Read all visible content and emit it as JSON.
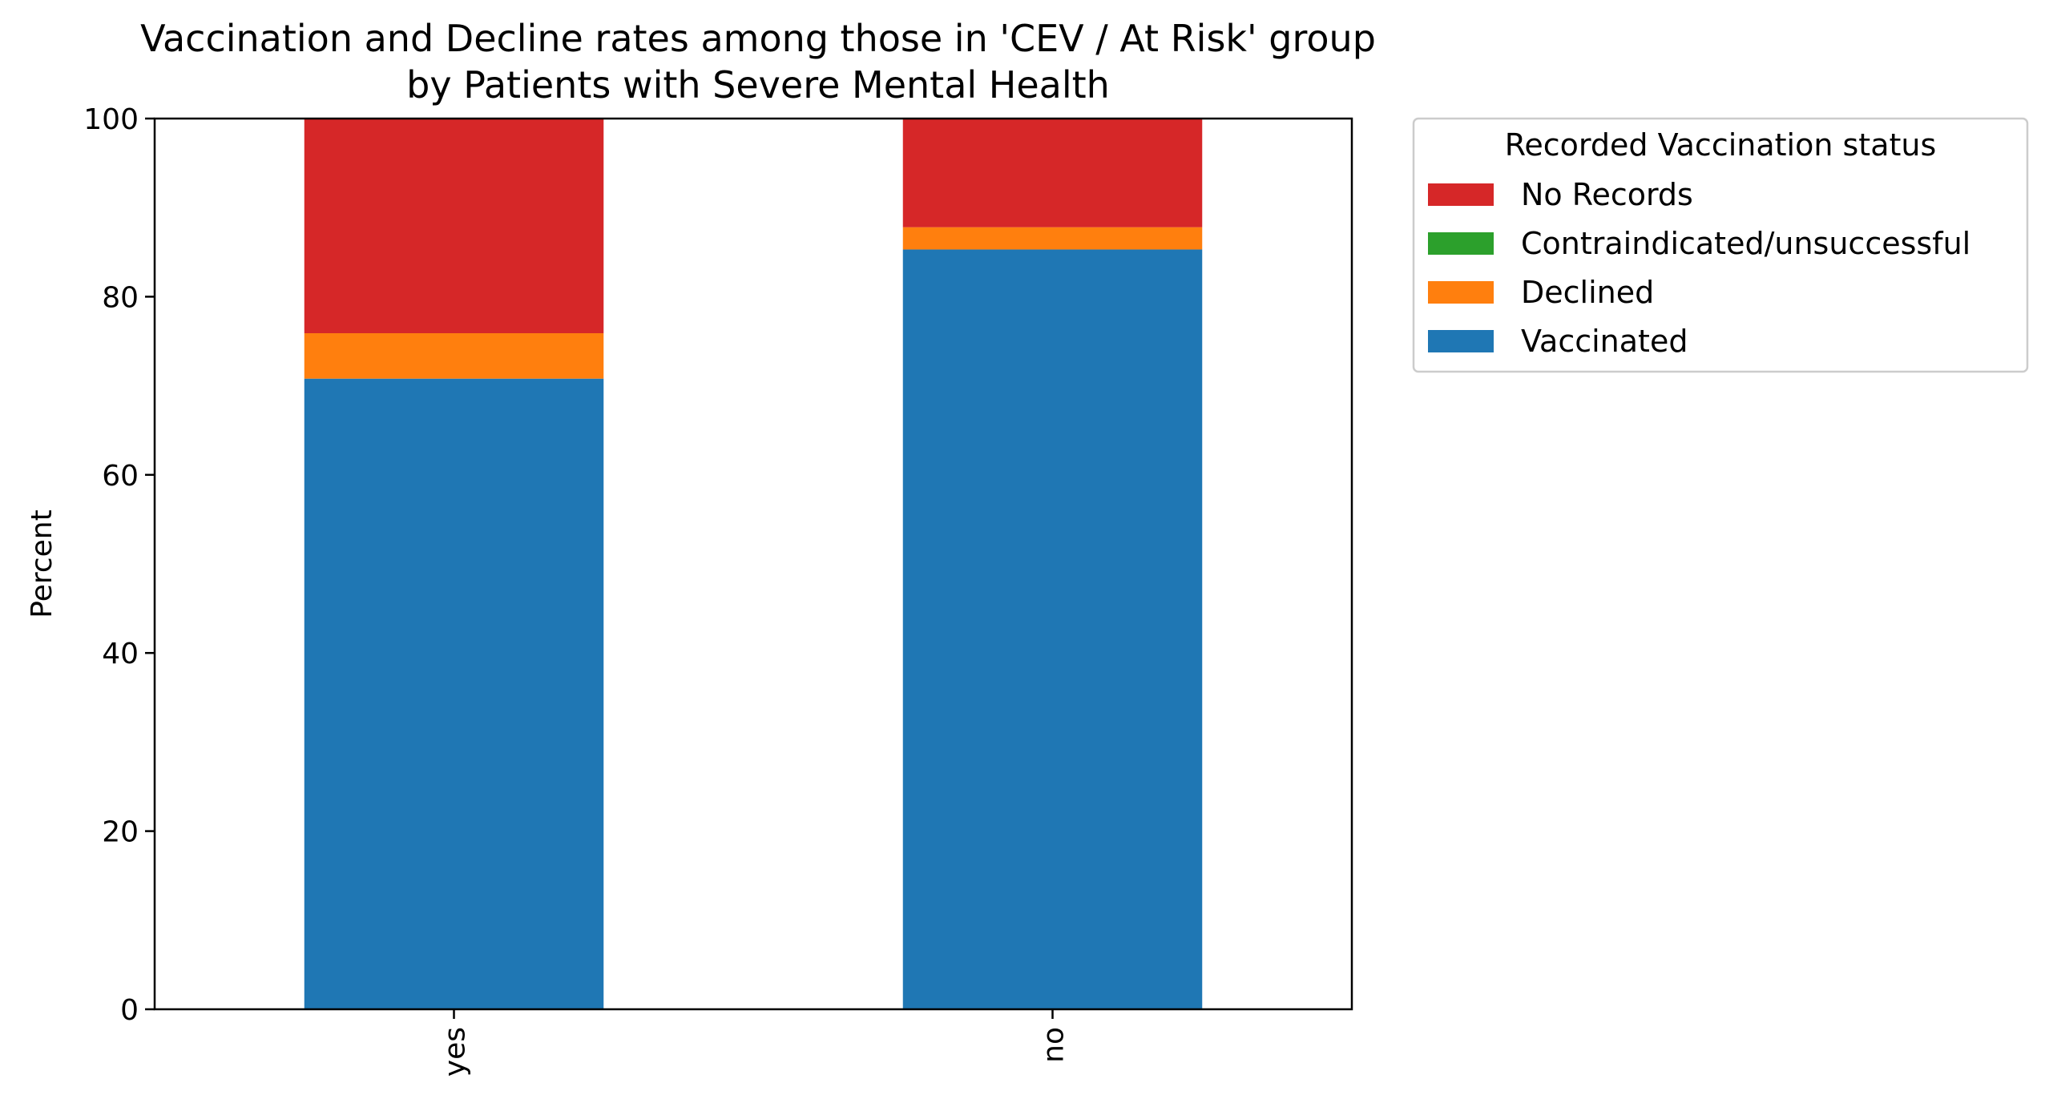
{
  "chart_data": {
    "type": "bar",
    "stacked": true,
    "title_lines": [
      "Vaccination and Decline rates among those in 'CEV / At Risk' group",
      "by Patients with Severe Mental Health"
    ],
    "xlabel": "",
    "ylabel": "Percent",
    "ylim": [
      0,
      100
    ],
    "yticks": [
      0,
      20,
      40,
      60,
      80,
      100
    ],
    "categories": [
      "yes",
      "no"
    ],
    "grid": false,
    "legend": {
      "title": "Recorded Vaccination status",
      "placement": "outside-top-right",
      "order": [
        "No Records",
        "Contraindicated/unsuccessful",
        "Declined",
        "Vaccinated"
      ]
    },
    "series": [
      {
        "name": "Vaccinated",
        "color": "#1f77b4",
        "values": [
          70.8,
          85.3
        ]
      },
      {
        "name": "Declined",
        "color": "#ff7f0e",
        "values": [
          5.1,
          2.5
        ]
      },
      {
        "name": "Contraindicated/unsuccessful",
        "color": "#2ca02c",
        "values": [
          0,
          0
        ]
      },
      {
        "name": "No Records",
        "color": "#d62728",
        "values": [
          24.1,
          12.2
        ]
      }
    ]
  }
}
